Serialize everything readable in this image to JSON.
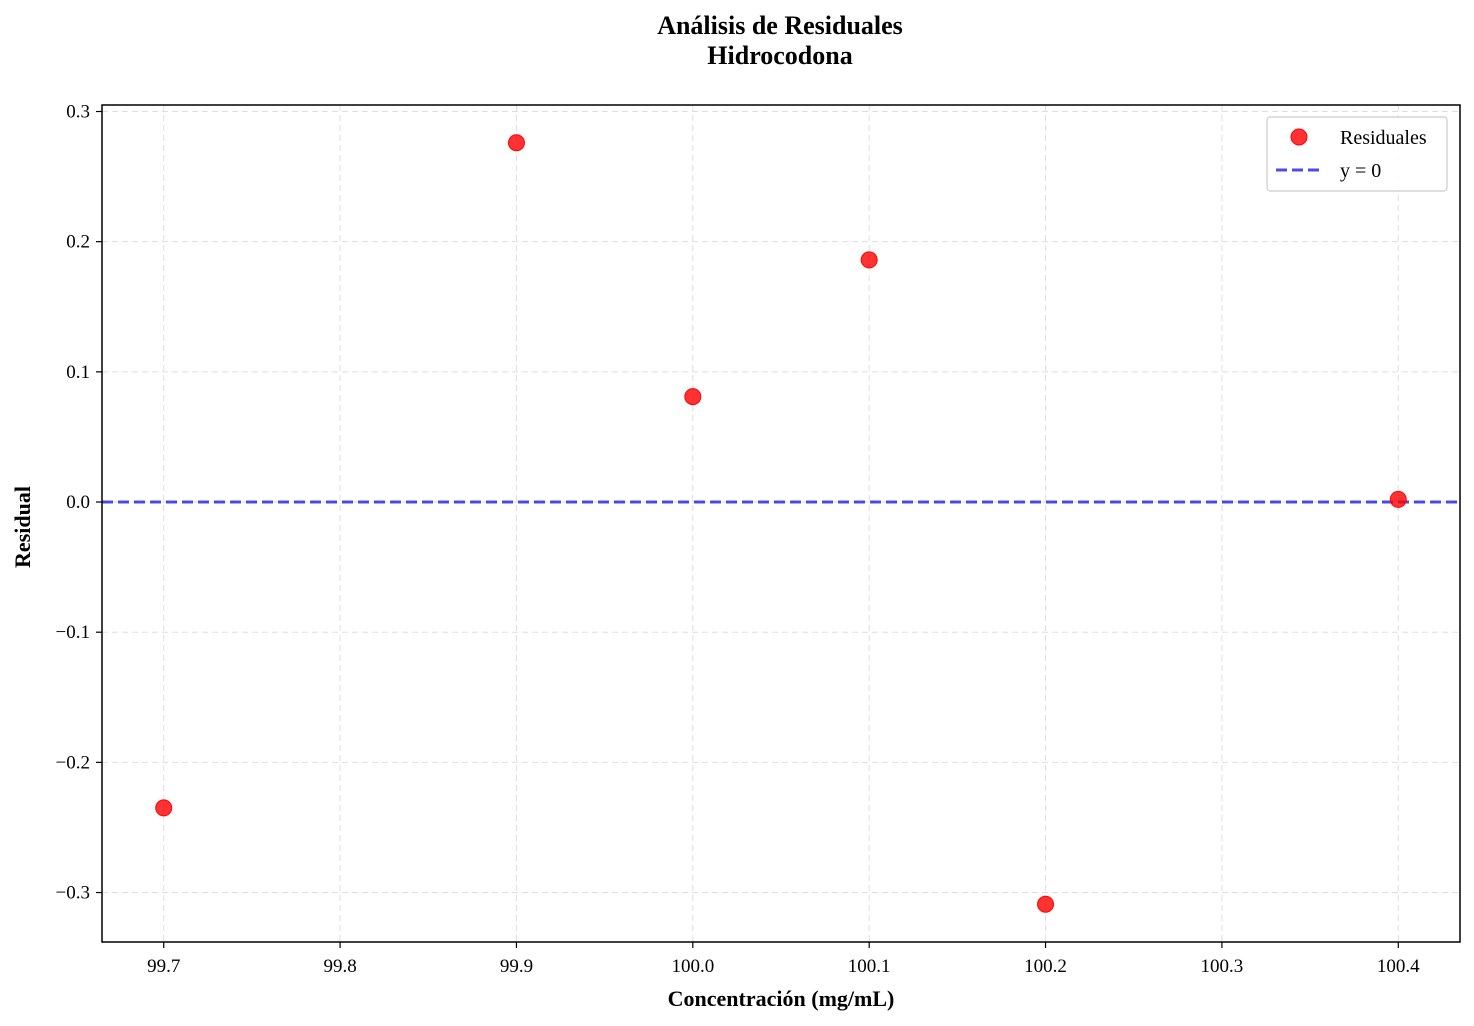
{
  "chart_data": {
    "type": "scatter",
    "title": "Análisis de Residuales",
    "subtitle": "Hidrocodona",
    "xlabel": "Concentración (mg/mL)",
    "ylabel": "Residual",
    "xlim": [
      99.665,
      100.435
    ],
    "ylim": [
      -0.338,
      0.305
    ],
    "xticks": [
      99.7,
      99.8,
      99.9,
      100.0,
      100.1,
      100.2,
      100.3,
      100.4
    ],
    "xtick_labels": [
      "99.7",
      "99.8",
      "99.9",
      "100.0",
      "100.1",
      "100.2",
      "100.3",
      "100.4"
    ],
    "yticks": [
      -0.3,
      -0.2,
      -0.1,
      0.0,
      0.1,
      0.2,
      0.3
    ],
    "ytick_labels": [
      "−0.3",
      "−0.2",
      "−0.1",
      "0.0",
      "0.1",
      "0.2",
      "0.3"
    ],
    "grid": true,
    "legend_position": "top-right",
    "series": [
      {
        "name": "Residuales",
        "kind": "scatter",
        "color": "#ff0000",
        "x": [
          99.7,
          99.9,
          100.0,
          100.1,
          100.2,
          100.4
        ],
        "y": [
          -0.235,
          0.276,
          0.081,
          0.186,
          -0.309,
          0.002
        ]
      },
      {
        "name": "y = 0",
        "kind": "hline",
        "color": "#0000dd",
        "style": "dashed",
        "y": 0
      }
    ]
  }
}
